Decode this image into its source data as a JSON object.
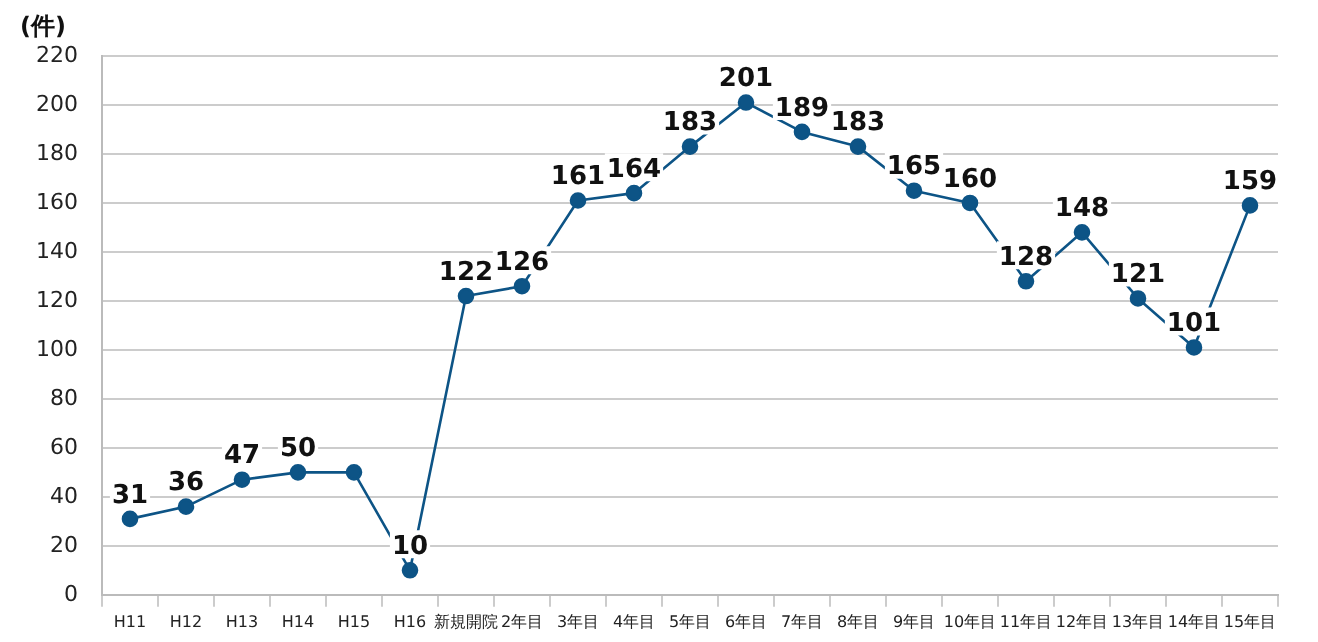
{
  "chart_data": {
    "type": "line",
    "ylabel": "(件)",
    "categories": [
      "H11",
      "H12",
      "H13",
      "H14",
      "H15",
      "H16",
      "新規開院",
      "2年目",
      "3年目",
      "4年目",
      "5年目",
      "6年目",
      "7年目",
      "8年目",
      "9年目",
      "10年目",
      "11年目",
      "12年目",
      "13年目",
      "14年目",
      "15年目"
    ],
    "series": [
      {
        "color": "#0d5486",
        "values": [
          31,
          36,
          47,
          50,
          50,
          10,
          122,
          126,
          161,
          164,
          183,
          201,
          189,
          183,
          165,
          160,
          128,
          148,
          121,
          101,
          159
        ],
        "value_labels": [
          "31",
          "36",
          "47",
          "50",
          null,
          "10",
          "122",
          "126",
          "161",
          "164",
          "183",
          "201",
          "189",
          "183",
          "165",
          "160",
          "128",
          "148",
          "121",
          "101",
          "159"
        ]
      }
    ],
    "ylim": [
      0,
      220
    ],
    "yticks": [
      0,
      20,
      40,
      60,
      80,
      100,
      120,
      140,
      160,
      180,
      200,
      220
    ],
    "grid": "y",
    "legend": false,
    "marker": "circle",
    "line_style": "solid"
  }
}
